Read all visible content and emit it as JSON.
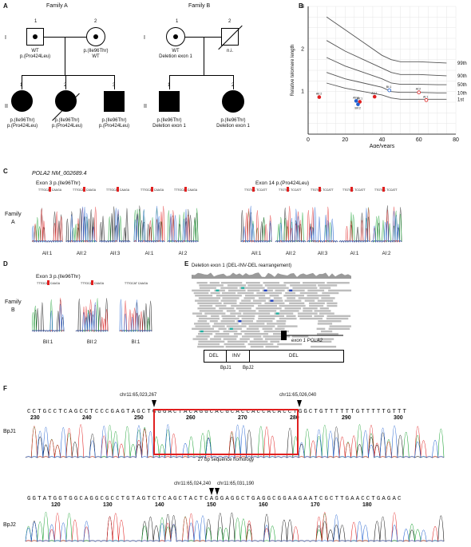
{
  "panels": {
    "a": "A",
    "b": "B",
    "c": "C",
    "d": "D",
    "e": "E",
    "f": "F"
  },
  "familyA": {
    "title": "Family A",
    "gen1": "I",
    "gen2": "II",
    "i1": {
      "num": "1",
      "l1": "WT",
      "l2": "p.(Pro424Leu)"
    },
    "i2": {
      "num": "2",
      "l1": "p.(Ile96Thr)",
      "l2": "WT"
    },
    "ii1": {
      "num": "1",
      "l1": "p.(Ile96Thr)",
      "l2": "p.(Pro424Leu)"
    },
    "ii2": {
      "num": "2",
      "l1": "p.(Ile96Thr)",
      "l2": "p.(Pro424Leu)"
    },
    "ii3": {
      "num": "3",
      "l1": "p.(Ile96Thr)",
      "l2": "p.(Pro424Leu)"
    }
  },
  "familyB": {
    "title": "Family B",
    "gen1": "I",
    "gen2": "II",
    "i1": {
      "num": "1",
      "l1": "WT",
      "l2": "Deletion exon 1"
    },
    "i2": {
      "num": "2",
      "l1": "n.i."
    },
    "ii1": {
      "num": "1",
      "l1": "p.(Ile96Thr)",
      "l2": "Deletion exon 1"
    },
    "ii2": {
      "num": "2",
      "l1": "p.(Ile96Thr)",
      "l2": "Deletion exon 1"
    }
  },
  "chart_data": {
    "type": "line",
    "ylabel": "Relative telomere length",
    "xlabel": "Age/years",
    "xlim": [
      0,
      80
    ],
    "ylim": [
      0,
      3
    ],
    "xticks": [
      "0",
      "20",
      "40",
      "60",
      "80"
    ],
    "yticks": [
      "1",
      "2",
      "3"
    ],
    "percentiles": [
      {
        "name": "99th",
        "x": [
          10,
          20,
          30,
          40,
          45,
          50,
          60,
          70,
          75
        ],
        "y": [
          2.75,
          2.45,
          2.15,
          1.85,
          1.75,
          1.7,
          1.7,
          1.68,
          1.67
        ]
      },
      {
        "name": "90th",
        "x": [
          10,
          20,
          30,
          40,
          45,
          50,
          60,
          70,
          75
        ],
        "y": [
          2.2,
          1.95,
          1.75,
          1.55,
          1.45,
          1.4,
          1.4,
          1.38,
          1.37
        ]
      },
      {
        "name": "50th",
        "x": [
          10,
          20,
          30,
          40,
          45,
          50,
          60,
          70,
          75
        ],
        "y": [
          1.8,
          1.6,
          1.45,
          1.3,
          1.2,
          1.17,
          1.17,
          1.16,
          1.16
        ]
      },
      {
        "name": "10th",
        "x": [
          10,
          20,
          30,
          40,
          45,
          50,
          60,
          70,
          75
        ],
        "y": [
          1.45,
          1.3,
          1.2,
          1.1,
          1.0,
          0.98,
          0.98,
          0.97,
          0.97
        ]
      },
      {
        "name": "1st",
        "x": [
          10,
          20,
          30,
          40,
          45,
          50,
          60,
          70,
          75
        ],
        "y": [
          1.2,
          1.08,
          1.0,
          0.92,
          0.85,
          0.82,
          0.82,
          0.82,
          0.82
        ]
      }
    ],
    "points": [
      {
        "label": "AII:2",
        "x": 6,
        "y": 0.87,
        "color": "#e02020",
        "filled": true
      },
      {
        "label": "BII:1",
        "x": 28,
        "y": 0.76,
        "color": "#e02020",
        "filled": true
      },
      {
        "label": "BII:2",
        "x": 27,
        "y": 0.7,
        "color": "#2060d0",
        "filled": true
      },
      {
        "label": "AII:3",
        "x": 26,
        "y": 0.78,
        "color": "#2060d0",
        "filled": true
      },
      {
        "label": "AII:1",
        "x": 36,
        "y": 0.88,
        "color": "#e02020",
        "filled": true
      },
      {
        "label": "BI:1",
        "x": 44,
        "y": 1.03,
        "color": "#2060d0",
        "filled": false
      },
      {
        "label": "AI:2",
        "x": 60,
        "y": 0.98,
        "color": "#e02020",
        "filled": false
      },
      {
        "label": "AI:1",
        "x": 64,
        "y": 0.8,
        "color": "#e02020",
        "filled": false
      }
    ]
  },
  "panelC": {
    "gene": "POLA2 NM_002689.4",
    "family": "Family",
    "familyLetter": "A",
    "exon3": "Exon 3 p.(Ile96Thr)",
    "exon14": "Exon 14 p.(Pro424Leu)",
    "labels3": [
      "AII:1",
      "AII:2",
      "AII:3",
      "AI:1",
      "AI:2"
    ],
    "labels14": [
      "AII:1",
      "AII:2",
      "AII:3",
      "AI:1",
      "AI:2"
    ]
  },
  "panelD": {
    "family": "Family",
    "familyLetter": "B",
    "exon3": "Exon 3 p.(Ile96Thr)",
    "labels": [
      "BII:1",
      "BII:2",
      "BI:1"
    ]
  },
  "panelE": {
    "title": "Deletion exon 1 (DEL-INV-DEL rearrangement)",
    "exon": "exon 1 POLA2",
    "seg": [
      "DEL",
      "INV",
      "DEL"
    ],
    "bp1": "BpJ1",
    "bp2": "BpJ2"
  },
  "panelF": {
    "bp1": "BpJ1",
    "bp2": "BpJ2",
    "seq1": "CCTGCCTCAGCCTCCCGAGTAGCTGGGACTACAGGCACGCACCACCACACCTGGCTGTTTTTTGTTTTTGTTT",
    "ticks1": [
      "230",
      "240",
      "250",
      "260",
      "270",
      "280",
      "290",
      "300"
    ],
    "pos1a": "chr11:65,023,267",
    "pos1b": "chr11:65,026,040",
    "homology": "27 bp sequence homology",
    "seq2": "GGTATGGTGGCAGGCGCCTGTAGTCTCAGCTACTCAGGAGGCTGAGGCGGAAGAATCGCTTGAACCTGAGAC",
    "ticks2": [
      "120",
      "130",
      "140",
      "150",
      "160",
      "170",
      "180"
    ],
    "pos2a": "chr11:65,024,240",
    "pos2b": "chr11:65,031,190"
  },
  "colors": {
    "red": "#e02020",
    "blue": "#2060d0",
    "green": "#18a030",
    "black": "#111111",
    "grey": "#bdbdbd",
    "teal": "#20b0a0"
  }
}
